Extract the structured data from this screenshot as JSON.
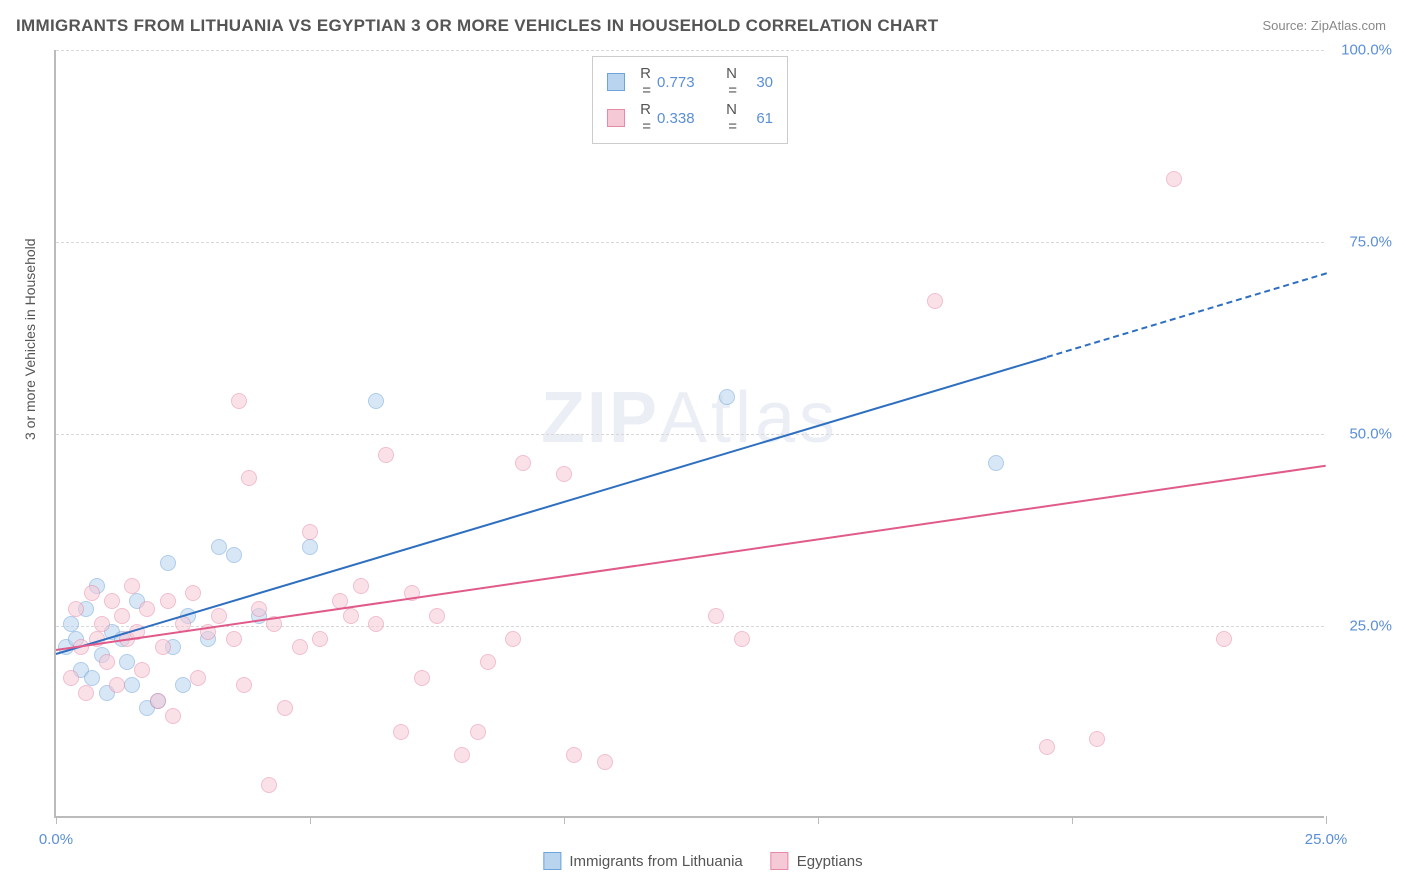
{
  "title": "IMMIGRANTS FROM LITHUANIA VS EGYPTIAN 3 OR MORE VEHICLES IN HOUSEHOLD CORRELATION CHART",
  "source": "Source: ZipAtlas.com",
  "ylabel": "3 or more Vehicles in Household",
  "watermark_zip": "ZIP",
  "watermark_atlas": "Atlas",
  "chart": {
    "type": "scatter",
    "xlim": [
      0,
      25
    ],
    "ylim": [
      0,
      100
    ],
    "x_ticks": [
      0,
      5,
      10,
      15,
      20,
      25
    ],
    "x_tick_labels": [
      "0.0%",
      "",
      "",
      "",
      "",
      "25.0%"
    ],
    "y_ticks": [
      25,
      50,
      75,
      100
    ],
    "y_tick_labels": [
      "25.0%",
      "50.0%",
      "75.0%",
      "100.0%"
    ],
    "background_color": "#ffffff",
    "grid_color": "#d8d8d8",
    "axis_color": "#bbbbbb",
    "tick_label_color": "#5b8fd6",
    "title_color": "#555555",
    "title_fontsize": 17,
    "label_fontsize": 14,
    "tick_fontsize": 15,
    "marker_radius": 8,
    "marker_opacity": 0.55,
    "series": [
      {
        "name": "Immigrants from Lithuania",
        "color_fill": "#b9d4ef",
        "color_stroke": "#6ea3db",
        "R": "0.773",
        "N": "30",
        "trend": {
          "x1": 0,
          "y1": 21.5,
          "x2": 25,
          "y2": 71,
          "solid_until_x": 19.5,
          "color": "#2e6fc0",
          "width": 2
        },
        "points": [
          [
            0.2,
            22
          ],
          [
            0.3,
            25
          ],
          [
            0.4,
            23
          ],
          [
            0.5,
            19
          ],
          [
            0.6,
            27
          ],
          [
            0.7,
            18
          ],
          [
            0.8,
            30
          ],
          [
            0.9,
            21
          ],
          [
            1.0,
            16
          ],
          [
            1.1,
            24
          ],
          [
            1.3,
            23
          ],
          [
            1.4,
            20
          ],
          [
            1.5,
            17
          ],
          [
            1.6,
            28
          ],
          [
            1.8,
            14
          ],
          [
            2.0,
            15
          ],
          [
            2.2,
            33
          ],
          [
            2.3,
            22
          ],
          [
            2.5,
            17
          ],
          [
            2.6,
            26
          ],
          [
            3.0,
            23
          ],
          [
            3.2,
            35
          ],
          [
            3.5,
            34
          ],
          [
            4.0,
            26
          ],
          [
            5.0,
            35
          ],
          [
            6.3,
            54
          ],
          [
            13.2,
            54.5
          ],
          [
            18.5,
            46
          ]
        ]
      },
      {
        "name": "Egyptians",
        "color_fill": "#f6c9d6",
        "color_stroke": "#e68aa8",
        "R": "0.338",
        "N": "61",
        "trend": {
          "x1": 0,
          "y1": 22,
          "x2": 25,
          "y2": 46,
          "solid_until_x": 25,
          "color": "#e05a8a",
          "width": 2
        },
        "points": [
          [
            0.3,
            18
          ],
          [
            0.4,
            27
          ],
          [
            0.5,
            22
          ],
          [
            0.6,
            16
          ],
          [
            0.7,
            29
          ],
          [
            0.8,
            23
          ],
          [
            0.9,
            25
          ],
          [
            1.0,
            20
          ],
          [
            1.1,
            28
          ],
          [
            1.2,
            17
          ],
          [
            1.3,
            26
          ],
          [
            1.4,
            23
          ],
          [
            1.5,
            30
          ],
          [
            1.6,
            24
          ],
          [
            1.7,
            19
          ],
          [
            1.8,
            27
          ],
          [
            2.0,
            15
          ],
          [
            2.1,
            22
          ],
          [
            2.2,
            28
          ],
          [
            2.3,
            13
          ],
          [
            2.5,
            25
          ],
          [
            2.7,
            29
          ],
          [
            2.8,
            18
          ],
          [
            3.0,
            24
          ],
          [
            3.2,
            26
          ],
          [
            3.5,
            23
          ],
          [
            3.6,
            54
          ],
          [
            3.7,
            17
          ],
          [
            3.8,
            44
          ],
          [
            4.0,
            27
          ],
          [
            4.2,
            4
          ],
          [
            4.3,
            25
          ],
          [
            4.5,
            14
          ],
          [
            4.8,
            22
          ],
          [
            5.0,
            37
          ],
          [
            5.2,
            23
          ],
          [
            5.6,
            28
          ],
          [
            5.8,
            26
          ],
          [
            6.0,
            30
          ],
          [
            6.3,
            25
          ],
          [
            6.5,
            47
          ],
          [
            6.8,
            11
          ],
          [
            7.0,
            29
          ],
          [
            7.2,
            18
          ],
          [
            7.5,
            26
          ],
          [
            8.0,
            8
          ],
          [
            8.3,
            11
          ],
          [
            8.5,
            20
          ],
          [
            9.0,
            23
          ],
          [
            9.2,
            46
          ],
          [
            10.0,
            44.5
          ],
          [
            10.2,
            8
          ],
          [
            10.8,
            7
          ],
          [
            13.0,
            26
          ],
          [
            13.5,
            23
          ],
          [
            17.3,
            67
          ],
          [
            19.5,
            9
          ],
          [
            20.5,
            10
          ],
          [
            22.0,
            83
          ],
          [
            23.0,
            23
          ]
        ]
      }
    ]
  },
  "legend_top": {
    "R_label": "R =",
    "N_label": "N ="
  },
  "legend_bottom_labels": [
    "Immigrants from Lithuania",
    "Egyptians"
  ]
}
